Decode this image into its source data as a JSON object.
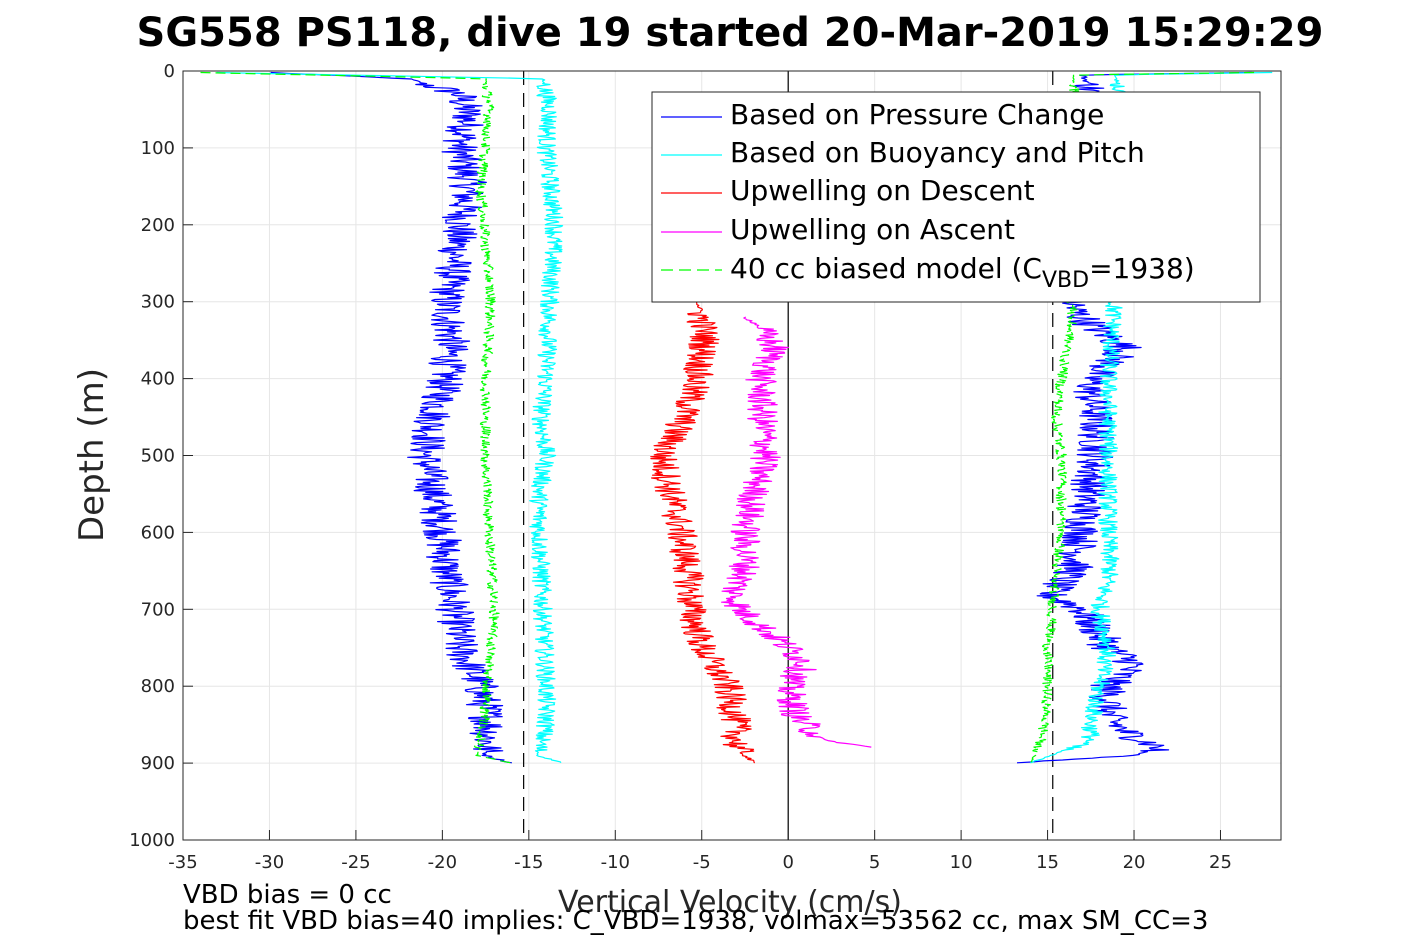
{
  "colors": {
    "pressure": "#0000ff",
    "buoyancy": "#00ffff",
    "upwelling_descent": "#ff0000",
    "upwelling_ascent": "#ff00ff",
    "biased_model": "#00ff00",
    "reference_lines": "#000000",
    "grid": "#e6e6e6"
  },
  "chart_data": {
    "type": "line",
    "title": "SG558 PS118, dive 19 started 20-Mar-2019 15:29:29",
    "xlabel": "Vertical Velocity (cm/s)",
    "ylabel": "Depth (m)",
    "xlim": [
      -35,
      28.5
    ],
    "ylim": [
      0,
      1000
    ],
    "y_reversed": true,
    "grid": true,
    "legend_position": "top-right",
    "xticks": [
      -35,
      -30,
      -25,
      -20,
      -15,
      -10,
      -5,
      0,
      5,
      10,
      15,
      20,
      25
    ],
    "yticks": [
      0,
      100,
      200,
      300,
      400,
      500,
      600,
      700,
      800,
      900,
      1000
    ],
    "vertical_reference_lines": [
      {
        "x": 0,
        "style": "solid"
      },
      {
        "x": -15.3,
        "style": "dashed"
      },
      {
        "x": 15.3,
        "style": "dashed"
      }
    ],
    "series": [
      {
        "name": "Based on Pressure Change",
        "color_key": "pressure",
        "style": "solid",
        "descent": {
          "depth": [
            2,
            10,
            30,
            60,
            100,
            150,
            200,
            250,
            300,
            350,
            400,
            450,
            500,
            550,
            600,
            650,
            700,
            750,
            800,
            850,
            890,
            900
          ],
          "velocity": [
            -30,
            -22,
            -19,
            -18.5,
            -19,
            -18.5,
            -19,
            -19.3,
            -19.8,
            -19.5,
            -19.8,
            -20.5,
            -21,
            -20.5,
            -20,
            -19.8,
            -19.3,
            -19,
            -17.8,
            -17.3,
            -17.5,
            -16
          ]
        },
        "ascent": {
          "depth": [
            900,
            890,
            880,
            860,
            840,
            800,
            770,
            750,
            700,
            680,
            650,
            600,
            550,
            500,
            450,
            420,
            400,
            360,
            330,
            310,
            20,
            5,
            2
          ],
          "velocity": [
            13,
            20,
            21.5,
            19.5,
            18.5,
            18.5,
            20,
            18.5,
            17,
            15,
            16.5,
            17,
            17.3,
            17.8,
            17.8,
            17.5,
            17.6,
            19.5,
            17.5,
            16.5,
            17.5,
            17,
            27
          ]
        }
      },
      {
        "name": "Based on Buoyancy and Pitch",
        "color_key": "buoyancy",
        "style": "solid",
        "descent": {
          "depth": [
            2,
            10,
            50,
            100,
            200,
            300,
            400,
            450,
            500,
            550,
            600,
            700,
            800,
            850,
            890,
            900
          ],
          "velocity": [
            -33,
            -14.2,
            -13.8,
            -14,
            -13.5,
            -13.8,
            -14,
            -14.3,
            -14,
            -14.4,
            -14.4,
            -14.2,
            -14,
            -14,
            -14.5,
            -13
          ]
        },
        "ascent": {
          "depth": [
            900,
            870,
            850,
            800,
            750,
            700,
            650,
            600,
            550,
            500,
            450,
            400,
            350,
            320,
            20,
            5,
            2
          ],
          "velocity": [
            14,
            17.5,
            17.5,
            18,
            18.5,
            18,
            18.6,
            18.5,
            18.5,
            18.5,
            18.5,
            18.5,
            18.7,
            18.8,
            19.2,
            18.8,
            28
          ]
        }
      },
      {
        "name": "Upwelling on Descent",
        "color_key": "upwelling_descent",
        "style": "solid",
        "descent": {
          "depth": [
            300,
            350,
            400,
            450,
            500,
            550,
            600,
            650,
            700,
            750,
            800,
            850,
            880,
            900
          ],
          "velocity": [
            -5.2,
            -4.8,
            -5.3,
            -6,
            -7.3,
            -6.8,
            -6.2,
            -5.8,
            -5.6,
            -5,
            -3.5,
            -3,
            -3,
            -2
          ]
        },
        "ascent": null
      },
      {
        "name": "Upwelling on Ascent",
        "color_key": "upwelling_ascent",
        "style": "solid",
        "descent": null,
        "ascent": {
          "depth": [
            880,
            870,
            840,
            800,
            770,
            750,
            700,
            680,
            650,
            600,
            550,
            500,
            450,
            400,
            360,
            330,
            320
          ],
          "velocity": [
            5,
            2,
            0.5,
            0,
            1,
            0,
            -2.8,
            -3.2,
            -2.5,
            -2.5,
            -2,
            -1.3,
            -1.5,
            -1.6,
            -0.8,
            -1.8,
            -2.5
          ]
        }
      },
      {
        "name": "40 cc biased model (C_VBD=1938)",
        "color_key": "biased_model",
        "style": "dashed",
        "descent": {
          "depth": [
            2,
            10,
            50,
            100,
            150,
            200,
            300,
            400,
            500,
            600,
            700,
            800,
            850,
            890,
            900
          ],
          "velocity": [
            -34,
            -17.5,
            -17.3,
            -17.5,
            -17.8,
            -17.6,
            -17.2,
            -17.5,
            -17.5,
            -17.3,
            -17,
            -17.4,
            -17.6,
            -18,
            -16
          ]
        },
        "ascent": {
          "depth": [
            900,
            880,
            850,
            800,
            750,
            700,
            650,
            600,
            500,
            450,
            400,
            350,
            320,
            20,
            5,
            2
          ],
          "velocity": [
            14,
            14.5,
            14.8,
            15,
            15,
            15.3,
            15.5,
            15.8,
            15.8,
            15.5,
            15.8,
            16.2,
            16.4,
            16.5,
            16.5,
            27
          ]
        }
      }
    ],
    "legend": {
      "entries": [
        {
          "label": "Based on Pressure Change",
          "color_key": "pressure",
          "style": "solid"
        },
        {
          "label": "Based on Buoyancy and Pitch",
          "color_key": "buoyancy",
          "style": "solid"
        },
        {
          "label": "Upwelling on Descent",
          "color_key": "upwelling_descent",
          "style": "solid"
        },
        {
          "label": "Upwelling on Ascent",
          "color_key": "upwelling_ascent",
          "style": "solid"
        },
        {
          "label_prefix": "40 cc biased model (C",
          "label_sub": "VBD",
          "label_suffix": "=1938)",
          "color_key": "biased_model",
          "style": "dashed"
        }
      ]
    },
    "annotations": [
      "VBD bias = 0 cc",
      "best fit VBD bias=40 implies: C_VBD=1938, volmax=53562 cc, max SM_CC=3"
    ]
  }
}
